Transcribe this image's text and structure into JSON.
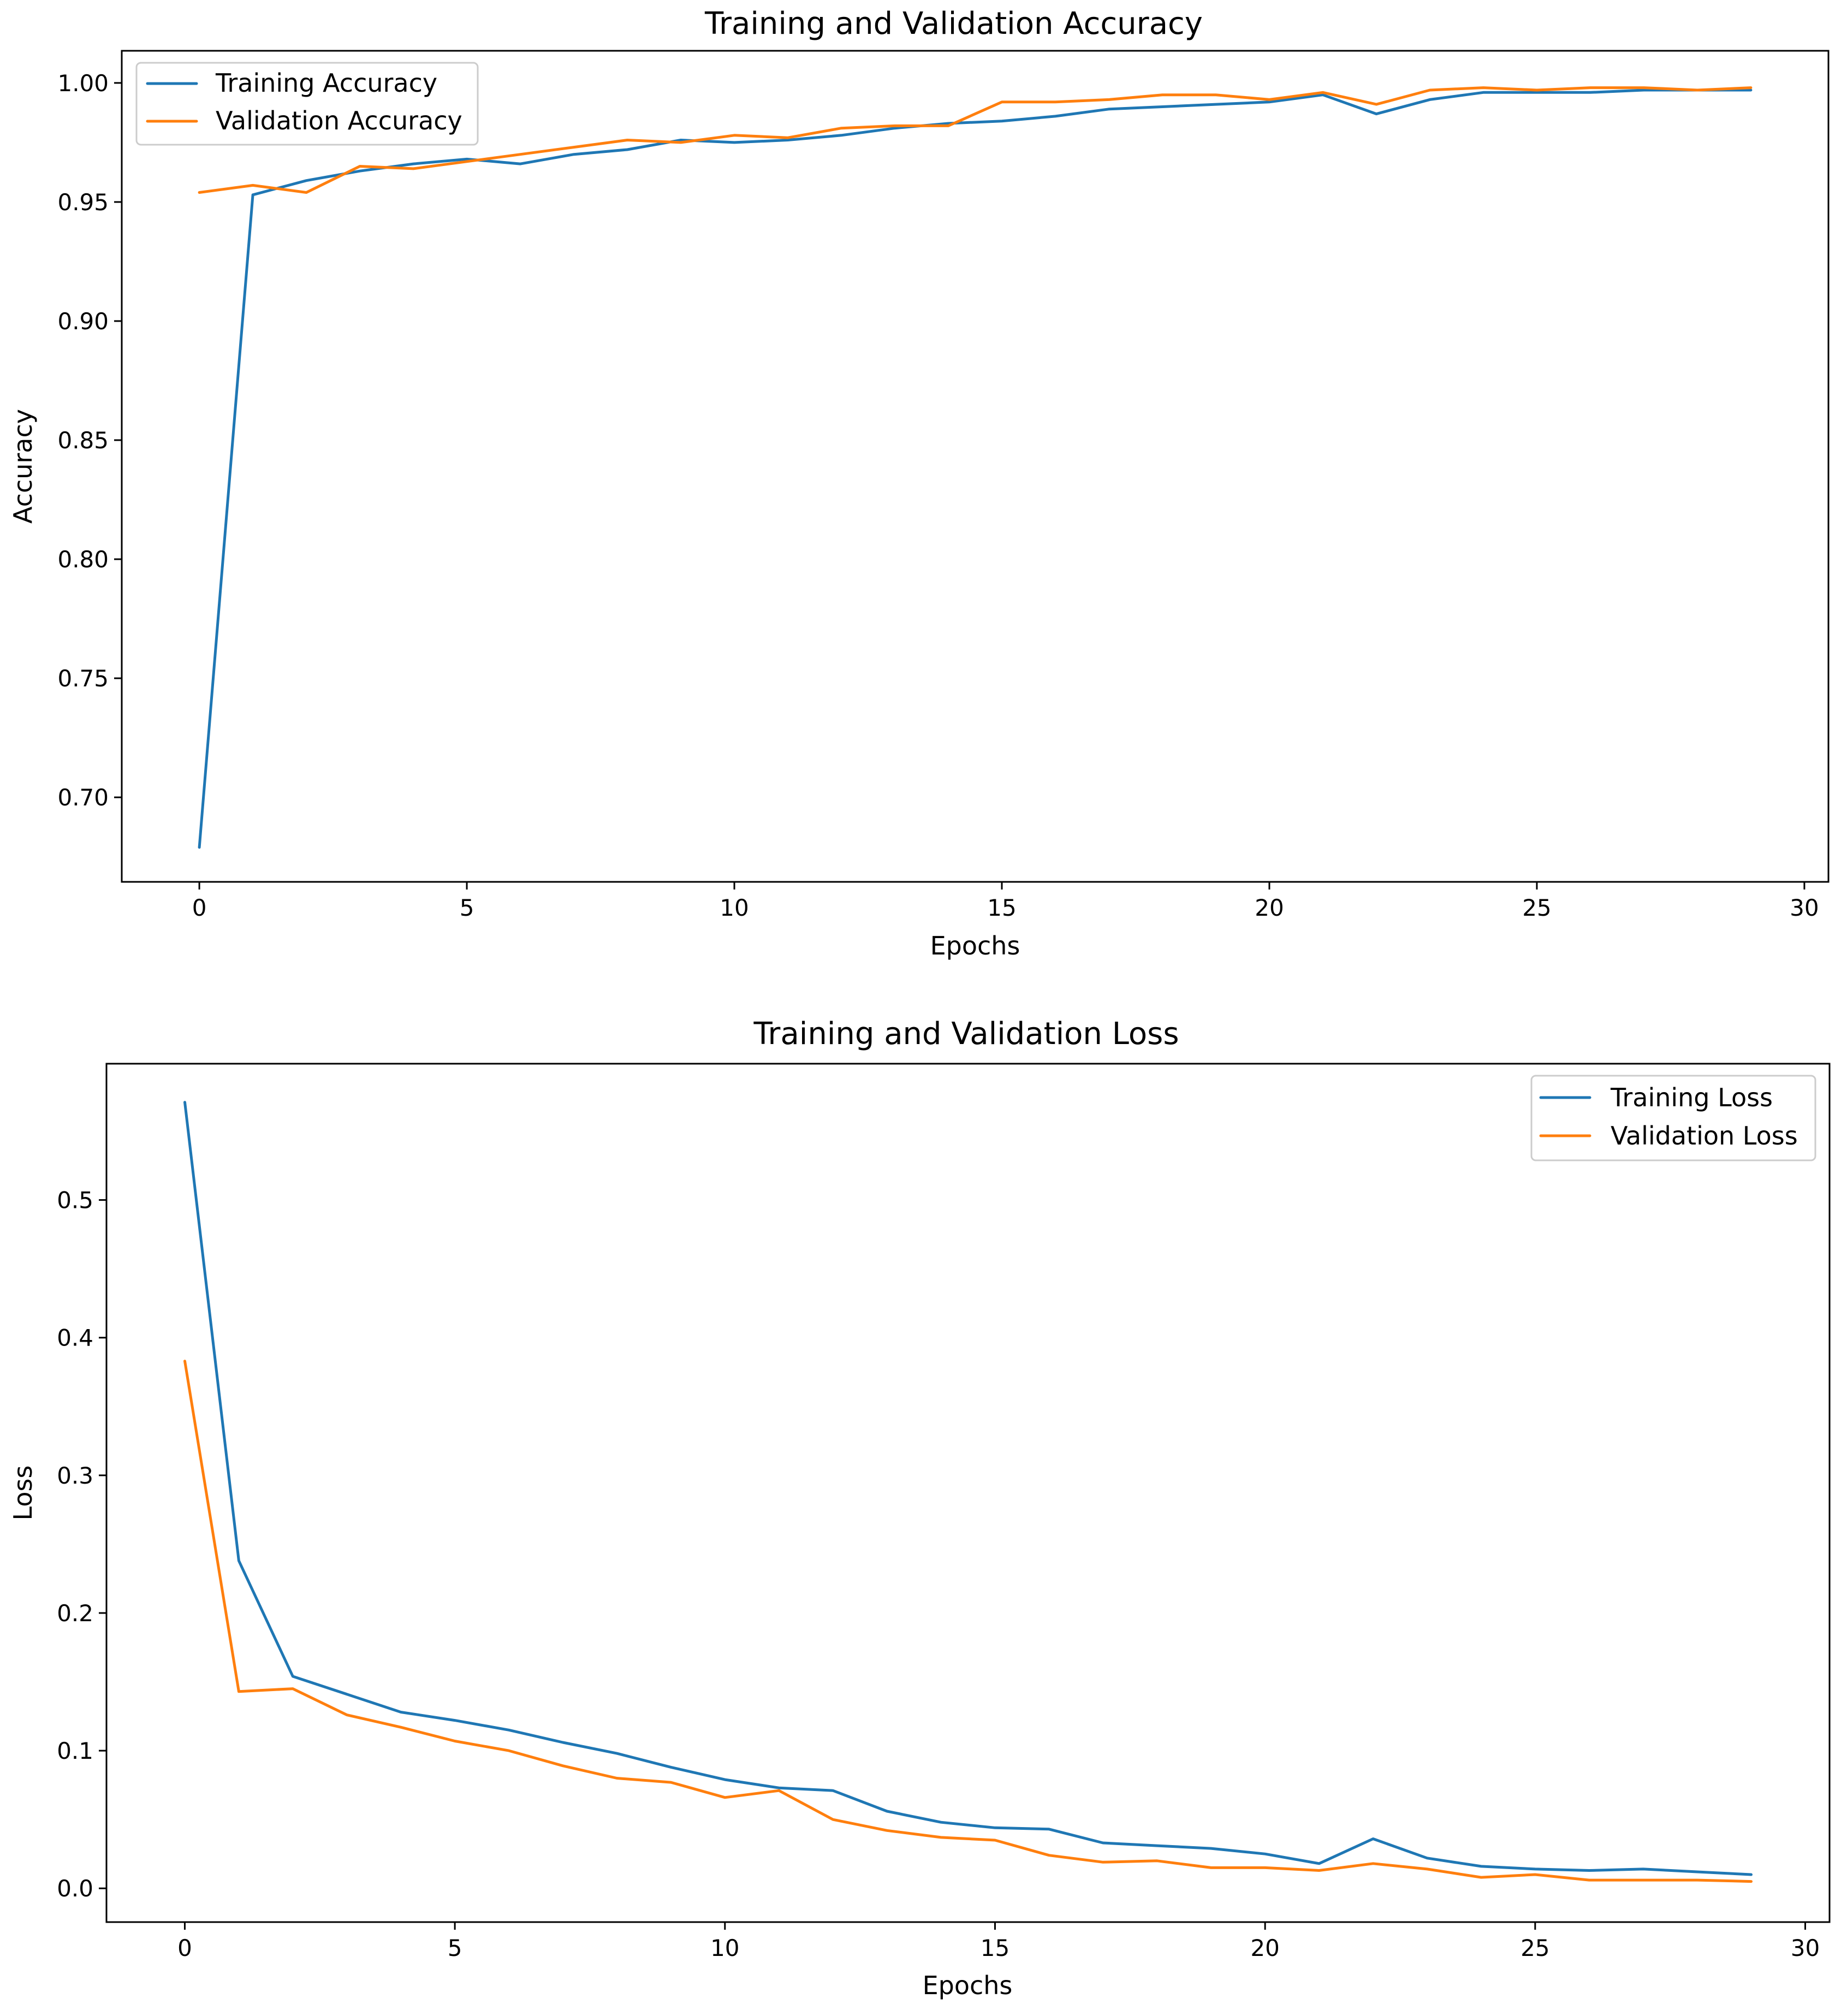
{
  "chart_data": [
    {
      "type": "line",
      "title": "Training and Validation Accuracy",
      "xlabel": "Epochs",
      "ylabel": "Accuracy",
      "xlim": [
        -1.45,
        30.45
      ],
      "ylim": [
        0.6645,
        1.0135
      ],
      "xticks": [
        0,
        5,
        10,
        15,
        20,
        25,
        30
      ],
      "xtick_labels": [
        "0",
        "5",
        "10",
        "15",
        "20",
        "25",
        "30"
      ],
      "yticks": [
        0.7,
        0.75,
        0.8,
        0.85,
        0.9,
        0.95,
        1.0
      ],
      "ytick_labels": [
        "0.70",
        "0.75",
        "0.80",
        "0.85",
        "0.90",
        "0.95",
        "1.00"
      ],
      "legend_position": "top-left",
      "x": [
        0,
        1,
        2,
        3,
        4,
        5,
        6,
        7,
        8,
        9,
        10,
        11,
        12,
        13,
        14,
        15,
        16,
        17,
        18,
        19,
        20,
        21,
        22,
        23,
        24,
        25,
        26,
        27,
        28,
        29
      ],
      "series": [
        {
          "name": "Training Accuracy",
          "color": "#1f77b4",
          "values": [
            0.679,
            0.953,
            0.959,
            0.963,
            0.966,
            0.968,
            0.966,
            0.97,
            0.972,
            0.976,
            0.975,
            0.976,
            0.978,
            0.981,
            0.983,
            0.984,
            0.986,
            0.989,
            0.99,
            0.991,
            0.992,
            0.995,
            0.987,
            0.993,
            0.996,
            0.996,
            0.996,
            0.997,
            0.997,
            0.997
          ]
        },
        {
          "name": "Validation Accuracy",
          "color": "#ff7f0e",
          "values": [
            0.954,
            0.957,
            0.954,
            0.965,
            0.964,
            0.967,
            0.97,
            0.973,
            0.976,
            0.975,
            0.978,
            0.977,
            0.981,
            0.982,
            0.982,
            0.992,
            0.992,
            0.993,
            0.995,
            0.995,
            0.993,
            0.996,
            0.991,
            0.997,
            0.998,
            0.997,
            0.998,
            0.998,
            0.997,
            0.998
          ]
        }
      ]
    },
    {
      "type": "line",
      "title": "Training and Validation Loss",
      "xlabel": "Epochs",
      "ylabel": "Loss",
      "xlim": [
        -1.45,
        30.45
      ],
      "ylim": [
        -0.0245,
        0.599
      ],
      "xticks": [
        0,
        5,
        10,
        15,
        20,
        25,
        30
      ],
      "xtick_labels": [
        "0",
        "5",
        "10",
        "15",
        "20",
        "25",
        "30"
      ],
      "yticks": [
        0.0,
        0.1,
        0.2,
        0.3,
        0.4,
        0.5
      ],
      "ytick_labels": [
        "0.0",
        "0.1",
        "0.2",
        "0.3",
        "0.4",
        "0.5"
      ],
      "legend_position": "top-right",
      "x": [
        0,
        1,
        2,
        3,
        4,
        5,
        6,
        7,
        8,
        9,
        10,
        11,
        12,
        13,
        14,
        15,
        16,
        17,
        18,
        19,
        20,
        21,
        22,
        23,
        24,
        25,
        26,
        27,
        28,
        29
      ],
      "series": [
        {
          "name": "Training Loss",
          "color": "#1f77b4",
          "values": [
            0.571,
            0.238,
            0.154,
            0.141,
            0.128,
            0.122,
            0.115,
            0.106,
            0.098,
            0.088,
            0.079,
            0.073,
            0.071,
            0.056,
            0.048,
            0.044,
            0.043,
            0.033,
            0.031,
            0.029,
            0.025,
            0.018,
            0.036,
            0.022,
            0.016,
            0.014,
            0.013,
            0.014,
            0.012,
            0.01
          ]
        },
        {
          "name": "Validation Loss",
          "color": "#ff7f0e",
          "values": [
            0.383,
            0.143,
            0.145,
            0.126,
            0.117,
            0.107,
            0.1,
            0.089,
            0.08,
            0.077,
            0.066,
            0.071,
            0.05,
            0.042,
            0.037,
            0.035,
            0.024,
            0.019,
            0.02,
            0.015,
            0.015,
            0.013,
            0.018,
            0.014,
            0.008,
            0.01,
            0.006,
            0.006,
            0.006,
            0.005
          ]
        }
      ]
    }
  ]
}
